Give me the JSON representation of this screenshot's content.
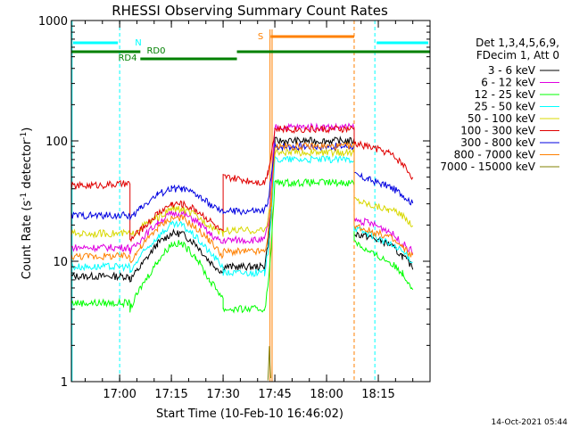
{
  "chart_data": {
    "type": "line",
    "title": "RHESSI Observing Summary Count Rates",
    "xlabel": "Start Time (10-Feb-10 16:46:02)",
    "ylabel_main": "Count Rate (s",
    "ylabel_sup1": "-1",
    "ylabel_mid": " detector",
    "ylabel_sup2": "-1",
    "ylabel_end": ")",
    "yscale": "log",
    "ylim": [
      1,
      1000
    ],
    "x_range_minutes": [
      0,
      104
    ],
    "x_ticks": [
      {
        "label": "17:00",
        "min": 14
      },
      {
        "label": "17:15",
        "min": 29
      },
      {
        "label": "17:30",
        "min": 44
      },
      {
        "label": "17:45",
        "min": 59
      },
      {
        "label": "18:00",
        "min": 74
      },
      {
        "label": "18:15",
        "min": 89
      }
    ],
    "y_ticks": [
      {
        "label": "1",
        "value": 1
      },
      {
        "label": "10",
        "value": 10
      },
      {
        "label": "100",
        "value": 100
      },
      {
        "label": "1000",
        "value": 1000
      }
    ],
    "legend": {
      "header": [
        "Det 1,3,4,5,6,9,",
        "FDecim 1, Att 0"
      ],
      "position": "right"
    },
    "series": [
      {
        "name": "3 - 6 keV",
        "color": "#000000",
        "points": [
          [
            0,
            7.5
          ],
          [
            17,
            7.5
          ],
          [
            17,
            7
          ],
          [
            20,
            9
          ],
          [
            25,
            14
          ],
          [
            29,
            17
          ],
          [
            32,
            17
          ],
          [
            36,
            14
          ],
          [
            40,
            10
          ],
          [
            44,
            8
          ],
          [
            44,
            9
          ],
          [
            56,
            9
          ],
          [
            57,
            14
          ],
          [
            58,
            30
          ],
          [
            59,
            100
          ],
          [
            82,
            100
          ],
          [
            82,
            17
          ],
          [
            86,
            16
          ],
          [
            92,
            14
          ],
          [
            96,
            11
          ],
          [
            99,
            9
          ]
        ]
      },
      {
        "name": "6 - 12 keV",
        "color": "#e000e0",
        "points": [
          [
            0,
            13
          ],
          [
            17,
            13
          ],
          [
            17,
            12
          ],
          [
            20,
            15
          ],
          [
            25,
            21
          ],
          [
            29,
            25
          ],
          [
            32,
            25
          ],
          [
            36,
            22
          ],
          [
            40,
            17
          ],
          [
            44,
            14
          ],
          [
            44,
            15
          ],
          [
            56,
            15
          ],
          [
            57,
            20
          ],
          [
            58,
            40
          ],
          [
            59,
            130
          ],
          [
            82,
            130
          ],
          [
            82,
            22
          ],
          [
            86,
            21
          ],
          [
            92,
            18
          ],
          [
            96,
            14
          ],
          [
            99,
            12
          ]
        ]
      },
      {
        "name": "12 - 25 keV",
        "color": "#00ff00",
        "points": [
          [
            0,
            4.5
          ],
          [
            17,
            4.5
          ],
          [
            17,
            4
          ],
          [
            20,
            6
          ],
          [
            25,
            10
          ],
          [
            29,
            14
          ],
          [
            32,
            14
          ],
          [
            36,
            11
          ],
          [
            40,
            7
          ],
          [
            44,
            5
          ],
          [
            44,
            4
          ],
          [
            56,
            4
          ],
          [
            57,
            6
          ],
          [
            58,
            14
          ],
          [
            59,
            45
          ],
          [
            82,
            45
          ],
          [
            82,
            15
          ],
          [
            86,
            12
          ],
          [
            92,
            10
          ],
          [
            96,
            8
          ],
          [
            99,
            6
          ]
        ]
      },
      {
        "name": "25 - 50 keV",
        "color": "#00ffff",
        "points": [
          [
            0,
            9
          ],
          [
            17,
            9
          ],
          [
            17,
            8
          ],
          [
            20,
            11
          ],
          [
            25,
            16
          ],
          [
            29,
            20
          ],
          [
            32,
            20
          ],
          [
            36,
            16
          ],
          [
            40,
            12
          ],
          [
            44,
            9
          ],
          [
            44,
            8
          ],
          [
            56,
            8
          ],
          [
            57,
            12
          ],
          [
            58,
            25
          ],
          [
            59,
            70
          ],
          [
            82,
            70
          ],
          [
            82,
            19
          ],
          [
            86,
            17
          ],
          [
            92,
            14
          ],
          [
            96,
            12
          ],
          [
            99,
            10
          ]
        ]
      },
      {
        "name": "50 - 100 keV",
        "color": "#d8d800",
        "points": [
          [
            0,
            17
          ],
          [
            17,
            17
          ],
          [
            17,
            16
          ],
          [
            20,
            19
          ],
          [
            25,
            23
          ],
          [
            29,
            27
          ],
          [
            32,
            27
          ],
          [
            36,
            24
          ],
          [
            40,
            20
          ],
          [
            44,
            17
          ],
          [
            44,
            18
          ],
          [
            56,
            18
          ],
          [
            57,
            22
          ],
          [
            58,
            35
          ],
          [
            59,
            80
          ],
          [
            82,
            80
          ],
          [
            82,
            33
          ],
          [
            86,
            30
          ],
          [
            92,
            27
          ],
          [
            96,
            24
          ],
          [
            99,
            20
          ]
        ]
      },
      {
        "name": "100 - 300 keV",
        "color": "#e00000",
        "points": [
          [
            0,
            42
          ],
          [
            17,
            44
          ],
          [
            17,
            15
          ],
          [
            20,
            18
          ],
          [
            25,
            25
          ],
          [
            29,
            30
          ],
          [
            32,
            30
          ],
          [
            36,
            27
          ],
          [
            40,
            22
          ],
          [
            44,
            17
          ],
          [
            44,
            50
          ],
          [
            56,
            45
          ],
          [
            57,
            55
          ],
          [
            58,
            80
          ],
          [
            59,
            125
          ],
          [
            82,
            125
          ],
          [
            82,
            95
          ],
          [
            86,
            90
          ],
          [
            92,
            80
          ],
          [
            96,
            65
          ],
          [
            99,
            50
          ]
        ]
      },
      {
        "name": "300 - 800 keV",
        "color": "#0000e0",
        "points": [
          [
            0,
            24
          ],
          [
            17,
            24
          ],
          [
            17,
            22
          ],
          [
            20,
            28
          ],
          [
            25,
            36
          ],
          [
            29,
            40
          ],
          [
            32,
            40
          ],
          [
            36,
            36
          ],
          [
            40,
            30
          ],
          [
            44,
            25
          ],
          [
            44,
            26
          ],
          [
            56,
            26
          ],
          [
            57,
            32
          ],
          [
            58,
            50
          ],
          [
            59,
            90
          ],
          [
            82,
            90
          ],
          [
            82,
            52
          ],
          [
            86,
            48
          ],
          [
            92,
            42
          ],
          [
            96,
            36
          ],
          [
            99,
            30
          ]
        ]
      },
      {
        "name": "800 - 7000 keV",
        "color": "#ff8000",
        "points": [
          [
            0,
            11
          ],
          [
            17,
            11
          ],
          [
            17,
            10
          ],
          [
            20,
            13
          ],
          [
            25,
            19
          ],
          [
            29,
            23
          ],
          [
            32,
            23
          ],
          [
            36,
            19
          ],
          [
            40,
            15
          ],
          [
            44,
            11
          ],
          [
            44,
            12
          ],
          [
            56,
            12
          ],
          [
            57,
            16
          ],
          [
            58,
            30
          ],
          [
            59,
            90
          ],
          [
            82,
            90
          ],
          [
            82,
            20
          ],
          [
            86,
            18
          ],
          [
            92,
            16
          ],
          [
            96,
            13
          ],
          [
            99,
            11
          ]
        ]
      },
      {
        "name": "7000 - 15000 keV",
        "color": "#808000",
        "points": [
          [
            57,
            1
          ],
          [
            57.4,
            2
          ],
          [
            57.8,
            1
          ]
        ]
      }
    ],
    "annotations": [
      {
        "text": "N",
        "color": "#00ffff"
      },
      {
        "text": "S",
        "color": "#ff8000"
      },
      {
        "text": "RD0",
        "color": "#008000"
      },
      {
        "text": "RD4",
        "color": "#008000"
      }
    ],
    "timestamp": "14-Oct-2021 05:44"
  }
}
